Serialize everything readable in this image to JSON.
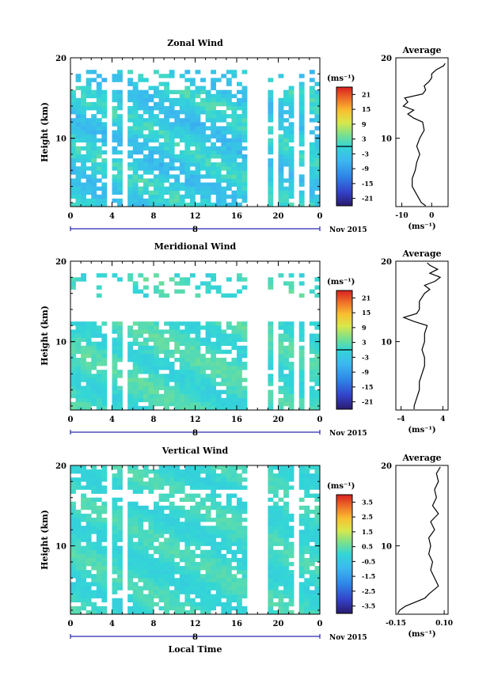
{
  "chart_data": [
    {
      "type": "heatmap",
      "title": "Zonal Wind",
      "ylabel": "Height (km)",
      "ylim": [
        1.5,
        20
      ],
      "y_ticks": [
        "20",
        "10"
      ],
      "y_tick_values": [
        20,
        10
      ],
      "xlim": [
        0,
        24
      ],
      "x_ticks": [
        "0",
        "4",
        "8",
        "12",
        "16",
        "20",
        "0"
      ],
      "x_tick_values": [
        0,
        4,
        8,
        12,
        16,
        20,
        24
      ],
      "date_label": "8",
      "date_suffix": "Nov 2015",
      "colorbar": {
        "unit": "(ms⁻¹)",
        "range": [
          -24,
          24
        ],
        "ticks": [
          "21",
          "15",
          "9",
          "3",
          "-3",
          "-9",
          "-15",
          "-21"
        ],
        "tick_values": [
          21,
          15,
          9,
          3,
          -3,
          -9,
          -15,
          -21
        ],
        "zero_line": 0
      },
      "data_gaps_hours": [
        [
          3.2,
          4.0
        ],
        [
          5.0,
          5.5
        ],
        [
          5.9,
          6.0
        ],
        [
          17.0,
          18.6
        ],
        [
          19.3,
          20.0
        ],
        [
          21.5,
          22.0
        ],
        [
          22.5,
          23.0
        ]
      ],
      "field": {
        "base": -2,
        "amplitude": 5,
        "top_of_data_km": 16,
        "sparse_layer_km": [
          16,
          18.5
        ]
      },
      "profile": {
        "title": "Average",
        "xlim": [
          -12,
          5.5
        ],
        "x_ticks": [
          "-10",
          "0"
        ],
        "x_tick_values": [
          -10,
          0
        ],
        "xlabel": "(ms⁻¹)",
        "y_ticks": [
          "20",
          "10"
        ],
        "y_tick_values": [
          20,
          10
        ],
        "heights": [
          1.6,
          2.0,
          3.0,
          4.0,
          5.0,
          6.0,
          7.0,
          8.0,
          9.0,
          10.0,
          11.0,
          12.0,
          12.5,
          13.0,
          13.5,
          14.0,
          14.5,
          15.0,
          15.5,
          16.0,
          16.5,
          17.0,
          17.5,
          18.0,
          18.5,
          19.0,
          19.3
        ],
        "values": [
          -2,
          -3.5,
          -5,
          -6.5,
          -6.5,
          -5.5,
          -5,
          -4,
          -5,
          -4,
          -2.5,
          -3,
          -6,
          -8,
          -6,
          -9.5,
          -8,
          -9,
          -3,
          -2,
          -2.5,
          -1,
          0,
          0,
          1.5,
          4,
          4.5
        ]
      }
    },
    {
      "type": "heatmap",
      "title": "Meridional Wind",
      "ylabel": "Height (km)",
      "ylim": [
        1.5,
        20
      ],
      "y_ticks": [
        "20",
        "10"
      ],
      "y_tick_values": [
        20,
        10
      ],
      "xlim": [
        0,
        24
      ],
      "x_ticks": [
        "0",
        "4",
        "8",
        "12",
        "16",
        "20",
        "0"
      ],
      "x_tick_values": [
        0,
        4,
        8,
        12,
        16,
        20,
        24
      ],
      "date_label": "8",
      "date_suffix": "Nov 2015",
      "colorbar": {
        "unit": "(ms⁻¹)",
        "range": [
          -24,
          24
        ],
        "ticks": [
          "21",
          "15",
          "9",
          "3",
          "-3",
          "-9",
          "-15",
          "-21"
        ],
        "tick_values": [
          21,
          15,
          9,
          3,
          -3,
          -9,
          -15,
          -21
        ],
        "zero_line": 0
      },
      "data_gaps_hours": [
        [
          3.2,
          4.0
        ],
        [
          5.0,
          5.5
        ],
        [
          5.9,
          6.0
        ],
        [
          17.0,
          18.6
        ],
        [
          19.3,
          20.0
        ],
        [
          21.5,
          22.0
        ],
        [
          22.5,
          23.0
        ]
      ],
      "field": {
        "base": 1,
        "amplitude": 3,
        "top_of_data_km": 12.5,
        "sparse_layer_km": [
          15.5,
          18.5
        ]
      },
      "profile": {
        "title": "Average",
        "xlim": [
          -5,
          5
        ],
        "x_ticks": [
          "-4",
          "4"
        ],
        "x_tick_values": [
          -4,
          4
        ],
        "xlabel": "(ms⁻¹)",
        "y_ticks": [
          "20",
          "10"
        ],
        "y_tick_values": [
          20,
          10
        ],
        "heights": [
          1.6,
          2.0,
          3.0,
          4.0,
          5.0,
          6.0,
          7.0,
          8.0,
          9.0,
          10.0,
          11.0,
          12.0,
          12.5,
          13.0,
          13.5,
          14.0,
          15.0,
          16.0,
          16.5,
          17.0,
          17.5,
          18.0,
          18.5,
          19.0,
          19.5,
          19.8
        ],
        "values": [
          -1.5,
          -1.5,
          -1,
          -0.5,
          -0.5,
          0,
          0.5,
          0.5,
          0,
          0.5,
          0.5,
          1,
          -1.5,
          -3.5,
          -1,
          -0.5,
          -0.5,
          0.5,
          1.5,
          0.5,
          2.5,
          3.5,
          1.5,
          3,
          1.5,
          1
        ]
      }
    },
    {
      "type": "heatmap",
      "title": "Vertical Wind",
      "ylabel": "Height (km)",
      "ylim": [
        1.5,
        20
      ],
      "y_ticks": [
        "20",
        "10"
      ],
      "y_tick_values": [
        20,
        10
      ],
      "xlim": [
        0,
        24
      ],
      "x_ticks": [
        "0",
        "4",
        "8",
        "12",
        "16",
        "20",
        "0"
      ],
      "x_tick_values": [
        0,
        4,
        8,
        12,
        16,
        20,
        24
      ],
      "date_label": "8",
      "date_suffix": "Nov 2015",
      "xlabel": "Local Time",
      "colorbar": {
        "unit": "(ms⁻¹)",
        "range": [
          -4,
          4
        ],
        "ticks": [
          "3.5",
          "2.5",
          "1.5",
          "0.5",
          "-0.5",
          "-1.5",
          "-2.5",
          "-3.5"
        ],
        "tick_values": [
          3.5,
          2.5,
          1.5,
          0.5,
          -0.5,
          -1.5,
          -2.5,
          -3.5
        ],
        "zero_line": null
      },
      "data_gaps_hours": [
        [
          3.2,
          4.0
        ],
        [
          5.0,
          5.5
        ],
        [
          5.9,
          6.0
        ],
        [
          16.6,
          18.6
        ],
        [
          21.5,
          22.0
        ]
      ],
      "field": {
        "base": 0.1,
        "amplitude": 0.4,
        "top_of_data_km": 20,
        "sparse_layer_km": [
          15,
          17
        ]
      },
      "profile": {
        "title": "Average",
        "xlim": [
          -0.15,
          0.12
        ],
        "x_ticks": [
          "-0.15",
          "0.10"
        ],
        "x_tick_values": [
          -0.15,
          0.1
        ],
        "xlabel": "(ms⁻¹)",
        "y_ticks": [
          "20",
          "10"
        ],
        "y_tick_values": [
          20,
          10
        ],
        "heights": [
          1.6,
          2.0,
          2.5,
          3.0,
          3.5,
          4.0,
          5.0,
          6.0,
          7.0,
          8.0,
          9.0,
          10.0,
          11.0,
          12.0,
          13.0,
          14.0,
          15.0,
          16.0,
          17.0,
          18.0,
          19.0,
          19.8
        ],
        "values": [
          -0.14,
          -0.13,
          -0.1,
          -0.05,
          0.0,
          0.02,
          0.07,
          0.05,
          0.03,
          0.04,
          0.02,
          0.03,
          0.02,
          0.05,
          0.03,
          0.07,
          0.04,
          0.06,
          0.05,
          0.07,
          0.06,
          0.08
        ]
      }
    }
  ]
}
